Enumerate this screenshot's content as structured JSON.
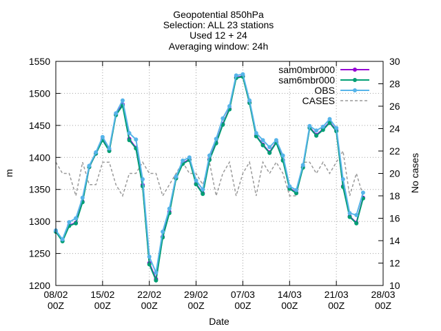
{
  "chart_data": {
    "type": "line",
    "title_lines": [
      "Geopotential 850hPa",
      "Selection: ALL     23 stations",
      "Used 12 + 24",
      "Averaging window: 24h"
    ],
    "xlabel": "Date",
    "ylabel": "m",
    "y2label": "No cases",
    "xlim": [
      "2002-02-08 00Z",
      "2002-03-28 00Z"
    ],
    "ylim": [
      1200,
      1550
    ],
    "y2lim": [
      10,
      30
    ],
    "x_ticks": [
      "08/02\n00Z",
      "15/02\n00Z",
      "22/02\n00Z",
      "29/02\n00Z",
      "07/03\n00Z",
      "14/03\n00Z",
      "21/03\n00Z",
      "28/03\n00Z"
    ],
    "y_ticks": [
      1200,
      1250,
      1300,
      1350,
      1400,
      1450,
      1500,
      1550
    ],
    "y2_ticks": [
      10,
      12,
      14,
      16,
      18,
      20,
      22,
      24,
      26,
      28,
      30
    ],
    "grid": true,
    "legend_position": "top-right",
    "x": [
      "08/02 00Z",
      "09/02 00Z",
      "10/02 00Z",
      "11/02 00Z",
      "12/02 00Z",
      "13/02 00Z",
      "14/02 00Z",
      "15/02 00Z",
      "16/02 00Z",
      "17/02 00Z",
      "18/02 00Z",
      "19/02 00Z",
      "20/02 00Z",
      "21/02 00Z",
      "22/02 00Z",
      "23/02 00Z",
      "24/02 00Z",
      "25/02 00Z",
      "26/02 00Z",
      "27/02 00Z",
      "28/02 00Z",
      "29/02 00Z",
      "01/03 00Z",
      "02/03 00Z",
      "03/03 00Z",
      "04/03 00Z",
      "05/03 00Z",
      "06/03 00Z",
      "07/03 00Z",
      "08/03 00Z",
      "09/03 00Z",
      "10/03 00Z",
      "11/03 00Z",
      "12/03 00Z",
      "13/03 00Z",
      "14/03 00Z",
      "15/03 00Z",
      "16/03 00Z",
      "17/03 00Z",
      "18/03 00Z",
      "19/03 00Z",
      "20/03 00Z",
      "21/03 00Z",
      "22/03 00Z",
      "23/03 00Z",
      "24/03 00Z",
      "25/03 00Z"
    ],
    "series": [
      {
        "name": "sam0mbr000",
        "color": "#9400d3",
        "axis": "y",
        "values": [
          1285,
          1270,
          1294,
          1298,
          1331,
          1385,
          1406,
          1428,
          1411,
          1467,
          1483,
          1429,
          1415,
          1357,
          1235,
          1210,
          1276,
          1315,
          1368,
          1391,
          1397,
          1359,
          1344,
          1397,
          1423,
          1452,
          1476,
          1525,
          1527,
          1486,
          1434,
          1420,
          1408,
          1424,
          1396,
          1352,
          1345,
          1385,
          1447,
          1435,
          1444,
          1455,
          1442,
          1355,
          1308,
          1298,
          1337
        ]
      },
      {
        "name": "sam6mbr000",
        "color": "#009e73",
        "axis": "y",
        "values": [
          1284,
          1269,
          1293,
          1297,
          1330,
          1385,
          1406,
          1427,
          1410,
          1466,
          1481,
          1427,
          1414,
          1355,
          1233,
          1208,
          1275,
          1313,
          1367,
          1390,
          1396,
          1358,
          1343,
          1396,
          1422,
          1451,
          1475,
          1524,
          1526,
          1485,
          1433,
          1419,
          1407,
          1423,
          1395,
          1351,
          1344,
          1384,
          1446,
          1434,
          1443,
          1454,
          1441,
          1354,
          1307,
          1297,
          1336
        ]
      },
      {
        "name": "OBS",
        "color": "#56b4e9",
        "axis": "y",
        "values": [
          1286,
          1272,
          1299,
          1305,
          1337,
          1387,
          1408,
          1432,
          1414,
          1469,
          1489,
          1438,
          1428,
          1366,
          1245,
          1220,
          1284,
          1320,
          1370,
          1395,
          1400,
          1364,
          1350,
          1403,
          1429,
          1461,
          1480,
          1528,
          1530,
          1489,
          1438,
          1427,
          1416,
          1427,
          1403,
          1355,
          1349,
          1388,
          1449,
          1442,
          1448,
          1460,
          1446,
          1366,
          1313,
          1310,
          1345
        ]
      },
      {
        "name": "CASES",
        "color": "#999999",
        "axis": "y2",
        "dashed": true,
        "values": [
          21,
          20,
          20,
          18,
          21,
          19,
          19,
          21,
          21,
          19,
          18,
          20,
          20,
          21,
          20,
          20,
          18,
          19,
          20,
          21,
          20,
          20,
          19,
          21,
          18,
          20,
          21,
          18,
          20,
          21,
          18,
          21,
          20,
          21,
          20,
          18,
          18,
          21,
          21,
          20,
          21,
          20,
          21,
          22,
          18,
          20,
          18
        ]
      }
    ]
  }
}
